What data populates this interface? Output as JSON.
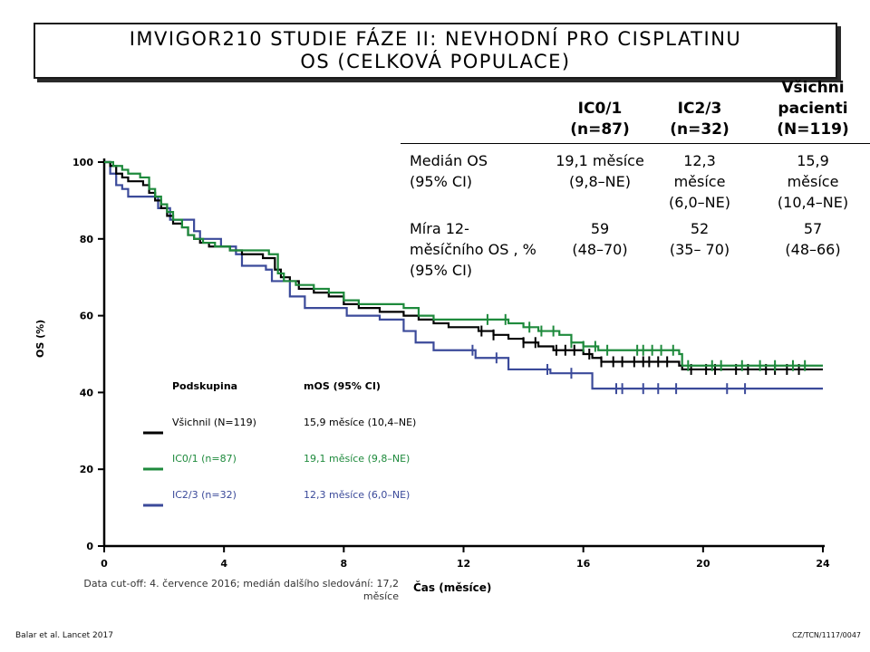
{
  "title": {
    "line1": "IMVIGOR210 STUDIE FÁZE II: NEVHODNÍ PRO CISPLATINU",
    "line2": "OS (CELKOVÁ POPULACE)"
  },
  "table": {
    "headers": [
      "IC0/1\n(n=87)",
      "IC2/3\n(n=32)",
      "Všichni\npacienti\n(N=119)"
    ],
    "rows": [
      {
        "label": "Medián OS\n(95% CI)",
        "values": [
          "19,1 měsíce\n(9,8–NE)",
          "12,3\nměsíce\n(6,0–NE)",
          "15,9\nměsíce\n(10,4–NE)"
        ]
      },
      {
        "label": "Míra 12-\nměsíčního OS , %\n(95% CI)",
        "values": [
          "59\n(48–70)",
          "52\n(35– 70)",
          "57\n(48–66)"
        ]
      }
    ]
  },
  "legend": {
    "header_group": "Podskupina",
    "header_mos": "mOS (95% CI)",
    "items": [
      {
        "label": "Všichnil (N=119)",
        "mos": "15,9 měsíce (10,4–NE)",
        "color": "#000000"
      },
      {
        "label": "IC0/1 (n=87)",
        "mos": "19,1 měsíce (9,8–NE)",
        "color": "#1e8a3c"
      },
      {
        "label": "IC2/3 (n=32)",
        "mos": "12,3 měsíce (6,0–NE)",
        "color": "#3b4a9a"
      }
    ]
  },
  "footnote": "Data cut-off: 4. července 2016; medián dalšího sledování: 17,2 měsíce",
  "reference": "Balar et al. Lancet 2017",
  "code": "CZ/TCN/1117/0047",
  "chart_data": {
    "type": "line",
    "xlabel": "Čas (měsíce)",
    "ylabel": "OS (%)",
    "xlim": [
      0,
      24
    ],
    "ylim": [
      0,
      100
    ],
    "xticks": [
      0,
      4,
      8,
      12,
      16,
      20,
      24
    ],
    "yticks": [
      0,
      20,
      40,
      60,
      80,
      100
    ],
    "series": [
      {
        "name": "Všichnil (N=119)",
        "color": "#000000",
        "steps": [
          [
            0,
            100
          ],
          [
            0.2,
            99
          ],
          [
            0.4,
            97
          ],
          [
            0.6,
            96
          ],
          [
            0.8,
            95
          ],
          [
            1.3,
            94
          ],
          [
            1.5,
            92
          ],
          [
            1.7,
            90
          ],
          [
            1.9,
            88
          ],
          [
            2.1,
            86
          ],
          [
            2.3,
            84
          ],
          [
            2.6,
            83
          ],
          [
            2.8,
            81
          ],
          [
            3.0,
            80
          ],
          [
            3.2,
            79
          ],
          [
            3.5,
            78
          ],
          [
            4.2,
            77
          ],
          [
            4.6,
            76
          ],
          [
            5.3,
            75
          ],
          [
            5.7,
            72
          ],
          [
            5.9,
            70
          ],
          [
            6.2,
            69
          ],
          [
            6.5,
            67
          ],
          [
            7.0,
            66
          ],
          [
            7.5,
            65
          ],
          [
            8.0,
            63
          ],
          [
            8.5,
            62
          ],
          [
            9.2,
            61
          ],
          [
            10.0,
            60
          ],
          [
            10.5,
            59
          ],
          [
            11.0,
            58
          ],
          [
            11.5,
            57
          ],
          [
            12.0,
            57
          ],
          [
            12.5,
            56
          ],
          [
            13.0,
            55
          ],
          [
            13.5,
            54
          ],
          [
            14.0,
            53
          ],
          [
            14.5,
            52
          ],
          [
            15.0,
            51
          ],
          [
            16.0,
            50
          ],
          [
            16.3,
            49
          ],
          [
            16.6,
            48
          ],
          [
            17.5,
            48
          ],
          [
            18.5,
            48
          ],
          [
            19.2,
            47
          ],
          [
            19.3,
            46
          ],
          [
            24,
            46
          ]
        ],
        "censors": [
          12.6,
          13.0,
          14.0,
          14.4,
          15.1,
          15.4,
          15.7,
          16.2,
          16.6,
          17.0,
          17.3,
          17.7,
          18.0,
          18.2,
          18.5,
          18.8,
          19.6,
          20.1,
          20.4,
          21.1,
          21.5,
          22.1,
          22.4,
          22.8,
          23.2
        ]
      },
      {
        "name": "IC0/1 (n=87)",
        "color": "#1e8a3c",
        "steps": [
          [
            0,
            100
          ],
          [
            0.3,
            99
          ],
          [
            0.6,
            98
          ],
          [
            0.8,
            97
          ],
          [
            1.2,
            96
          ],
          [
            1.5,
            93
          ],
          [
            1.7,
            91
          ],
          [
            1.9,
            89
          ],
          [
            2.1,
            87
          ],
          [
            2.3,
            85
          ],
          [
            2.6,
            83
          ],
          [
            2.8,
            81
          ],
          [
            3.0,
            80
          ],
          [
            3.3,
            79
          ],
          [
            3.7,
            78
          ],
          [
            4.2,
            77
          ],
          [
            4.6,
            77
          ],
          [
            5.5,
            76
          ],
          [
            5.8,
            71
          ],
          [
            6.0,
            69
          ],
          [
            6.4,
            68
          ],
          [
            7.0,
            67
          ],
          [
            7.5,
            66
          ],
          [
            8.0,
            64
          ],
          [
            8.5,
            63
          ],
          [
            9.5,
            63
          ],
          [
            10.0,
            62
          ],
          [
            10.5,
            60
          ],
          [
            11.0,
            59
          ],
          [
            12.0,
            59
          ],
          [
            13.0,
            59
          ],
          [
            13.5,
            58
          ],
          [
            14.0,
            57
          ],
          [
            14.5,
            56
          ],
          [
            15.2,
            55
          ],
          [
            15.6,
            53
          ],
          [
            16.0,
            52
          ],
          [
            16.5,
            51
          ],
          [
            17.0,
            51
          ],
          [
            18.0,
            51
          ],
          [
            19.2,
            50
          ],
          [
            19.3,
            47
          ],
          [
            24,
            47
          ]
        ],
        "censors": [
          12.8,
          13.4,
          14.2,
          14.6,
          15.0,
          15.6,
          16.0,
          16.4,
          16.8,
          17.8,
          18.0,
          18.3,
          18.6,
          19.0,
          19.5,
          20.3,
          20.6,
          21.3,
          21.9,
          22.4,
          23.0,
          23.4
        ]
      },
      {
        "name": "IC2/3 (n=32)",
        "color": "#3b4a9a",
        "steps": [
          [
            0,
            100
          ],
          [
            0.2,
            97
          ],
          [
            0.4,
            94
          ],
          [
            0.6,
            93
          ],
          [
            0.8,
            91
          ],
          [
            1.8,
            88
          ],
          [
            2.2,
            85
          ],
          [
            3.0,
            82
          ],
          [
            3.2,
            80
          ],
          [
            3.9,
            78
          ],
          [
            4.4,
            76
          ],
          [
            4.6,
            73
          ],
          [
            5.4,
            72
          ],
          [
            5.6,
            69
          ],
          [
            6.2,
            65
          ],
          [
            6.7,
            62
          ],
          [
            8.0,
            62
          ],
          [
            8.1,
            60
          ],
          [
            9.2,
            59
          ],
          [
            10.0,
            56
          ],
          [
            10.4,
            53
          ],
          [
            11.0,
            51
          ],
          [
            12.4,
            49
          ],
          [
            13.2,
            49
          ],
          [
            13.5,
            46
          ],
          [
            14.0,
            46
          ],
          [
            14.9,
            45
          ],
          [
            16.0,
            45
          ],
          [
            16.3,
            41
          ],
          [
            17.0,
            41
          ],
          [
            24,
            41
          ]
        ],
        "censors": [
          12.3,
          13.1,
          14.8,
          15.6,
          17.1,
          17.3,
          18.0,
          18.5,
          19.1,
          20.8,
          21.4
        ]
      }
    ]
  }
}
